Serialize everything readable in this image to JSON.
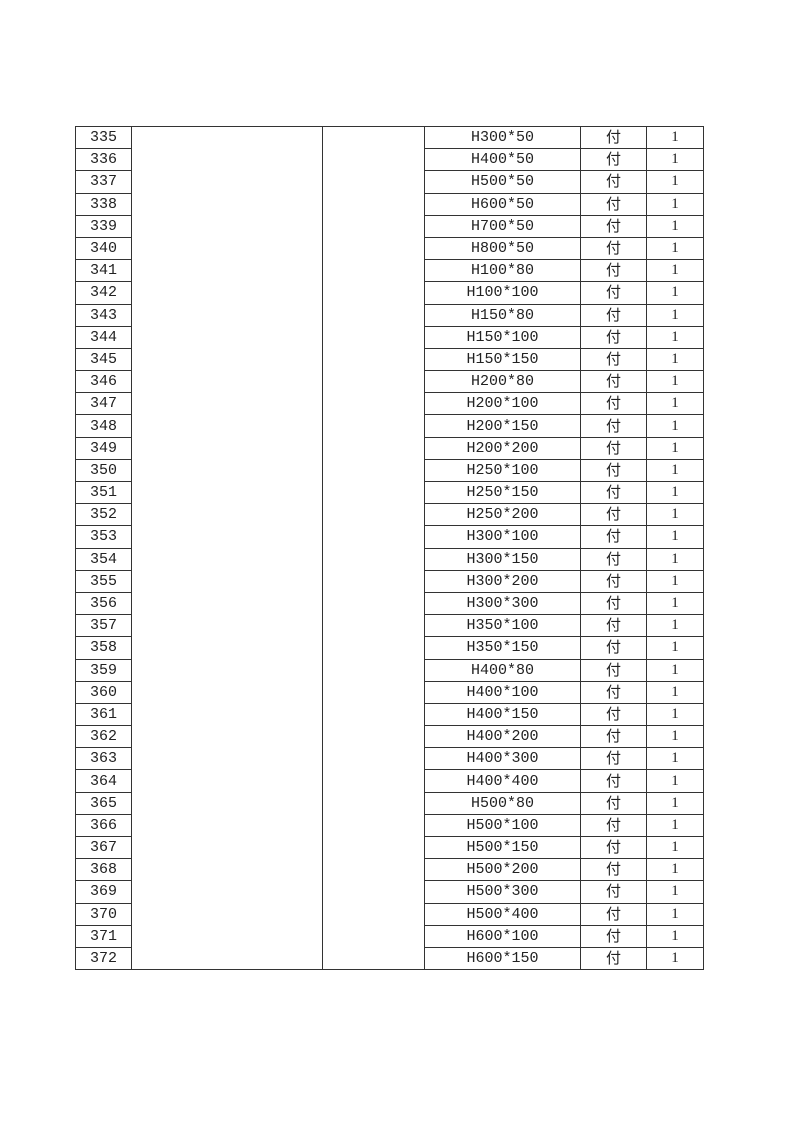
{
  "table": {
    "rows": [
      {
        "no": "335",
        "spec": "H300*50",
        "unit": "付",
        "qty": "1"
      },
      {
        "no": "336",
        "spec": "H400*50",
        "unit": "付",
        "qty": "1"
      },
      {
        "no": "337",
        "spec": "H500*50",
        "unit": "付",
        "qty": "1"
      },
      {
        "no": "338",
        "spec": "H600*50",
        "unit": "付",
        "qty": "1"
      },
      {
        "no": "339",
        "spec": "H700*50",
        "unit": "付",
        "qty": "1"
      },
      {
        "no": "340",
        "spec": "H800*50",
        "unit": "付",
        "qty": "1"
      },
      {
        "no": "341",
        "spec": "H100*80",
        "unit": "付",
        "qty": "1"
      },
      {
        "no": "342",
        "spec": "H100*100",
        "unit": "付",
        "qty": "1"
      },
      {
        "no": "343",
        "spec": "H150*80",
        "unit": "付",
        "qty": "1"
      },
      {
        "no": "344",
        "spec": "H150*100",
        "unit": "付",
        "qty": "1"
      },
      {
        "no": "345",
        "spec": "H150*150",
        "unit": "付",
        "qty": "1"
      },
      {
        "no": "346",
        "spec": "H200*80",
        "unit": "付",
        "qty": "1"
      },
      {
        "no": "347",
        "spec": "H200*100",
        "unit": "付",
        "qty": "1"
      },
      {
        "no": "348",
        "spec": "H200*150",
        "unit": "付",
        "qty": "1"
      },
      {
        "no": "349",
        "spec": "H200*200",
        "unit": "付",
        "qty": "1"
      },
      {
        "no": "350",
        "spec": "H250*100",
        "unit": "付",
        "qty": "1"
      },
      {
        "no": "351",
        "spec": "H250*150",
        "unit": "付",
        "qty": "1"
      },
      {
        "no": "352",
        "spec": "H250*200",
        "unit": "付",
        "qty": "1"
      },
      {
        "no": "353",
        "spec": "H300*100",
        "unit": "付",
        "qty": "1"
      },
      {
        "no": "354",
        "spec": "H300*150",
        "unit": "付",
        "qty": "1"
      },
      {
        "no": "355",
        "spec": "H300*200",
        "unit": "付",
        "qty": "1"
      },
      {
        "no": "356",
        "spec": "H300*300",
        "unit": "付",
        "qty": "1"
      },
      {
        "no": "357",
        "spec": "H350*100",
        "unit": "付",
        "qty": "1"
      },
      {
        "no": "358",
        "spec": "H350*150",
        "unit": "付",
        "qty": "1"
      },
      {
        "no": "359",
        "spec": "H400*80",
        "unit": "付",
        "qty": "1"
      },
      {
        "no": "360",
        "spec": "H400*100",
        "unit": "付",
        "qty": "1"
      },
      {
        "no": "361",
        "spec": "H400*150",
        "unit": "付",
        "qty": "1"
      },
      {
        "no": "362",
        "spec": "H400*200",
        "unit": "付",
        "qty": "1"
      },
      {
        "no": "363",
        "spec": "H400*300",
        "unit": "付",
        "qty": "1"
      },
      {
        "no": "364",
        "spec": "H400*400",
        "unit": "付",
        "qty": "1"
      },
      {
        "no": "365",
        "spec": "H500*80",
        "unit": "付",
        "qty": "1"
      },
      {
        "no": "366",
        "spec": "H500*100",
        "unit": "付",
        "qty": "1"
      },
      {
        "no": "367",
        "spec": "H500*150",
        "unit": "付",
        "qty": "1"
      },
      {
        "no": "368",
        "spec": "H500*200",
        "unit": "付",
        "qty": "1"
      },
      {
        "no": "369",
        "spec": "H500*300",
        "unit": "付",
        "qty": "1"
      },
      {
        "no": "370",
        "spec": "H500*400",
        "unit": "付",
        "qty": "1"
      },
      {
        "no": "371",
        "spec": "H600*100",
        "unit": "付",
        "qty": "1"
      },
      {
        "no": "372",
        "spec": "H600*150",
        "unit": "付",
        "qty": "1"
      }
    ]
  }
}
